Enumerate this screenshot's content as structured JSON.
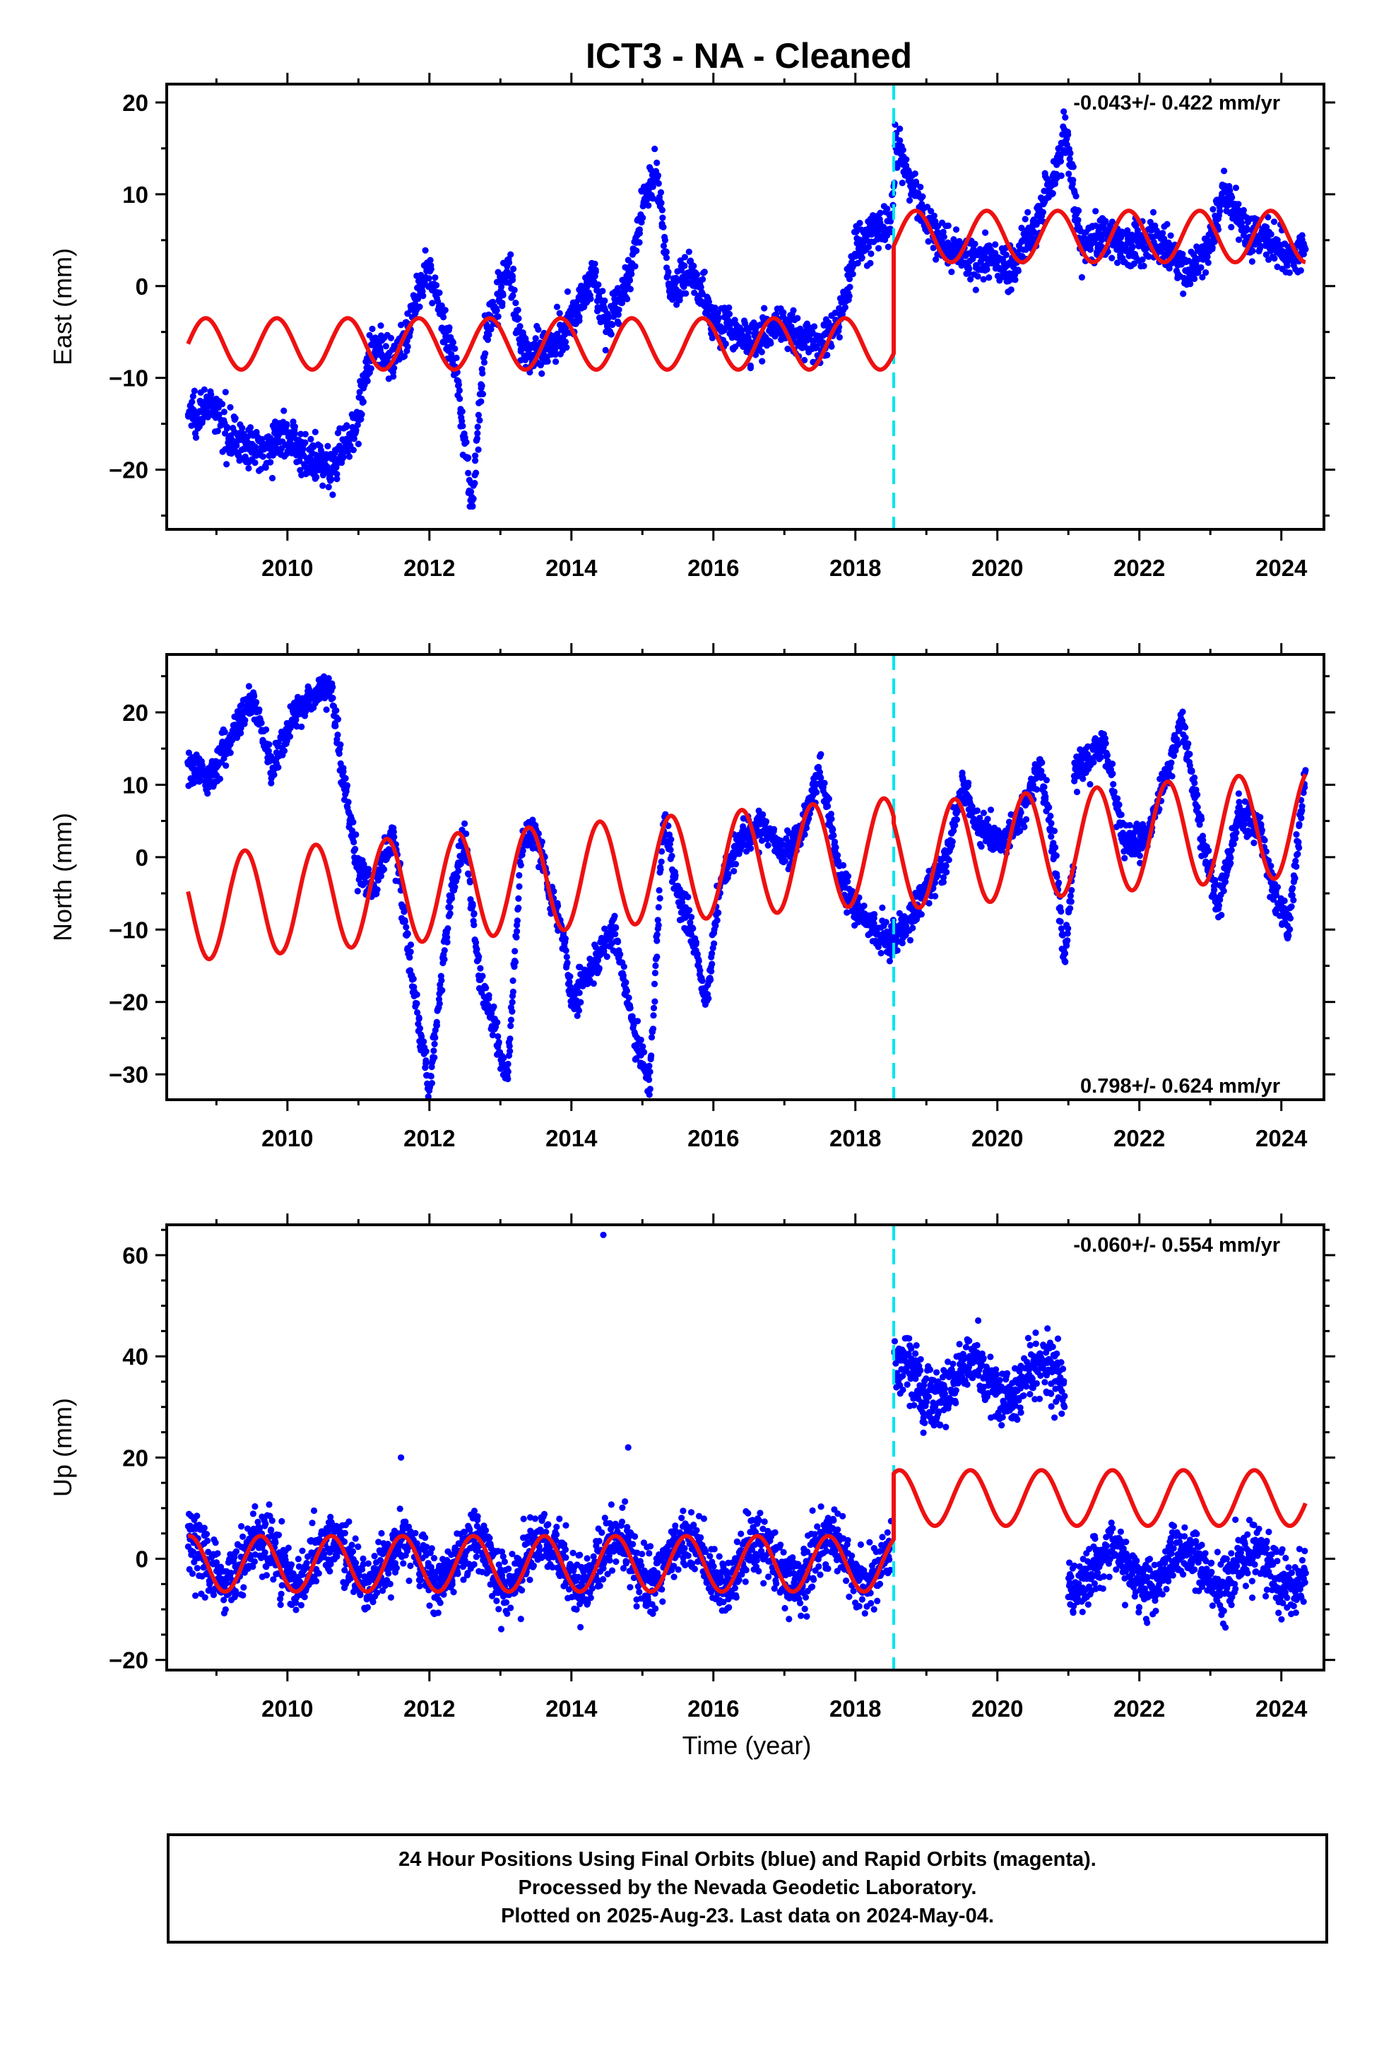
{
  "title": "ICT3  - NA - Cleaned",
  "colors": {
    "final_orbits": "#0000ff",
    "model": "#ee1111",
    "offset_line": "#00e5ee",
    "axes": "#000000"
  },
  "x_ticks": [
    2010,
    2012,
    2014,
    2016,
    2018,
    2020,
    2022,
    2024
  ],
  "x_axis_label": "Time (year)",
  "footer": {
    "line1": "24 Hour Positions Using Final Orbits (blue) and Rapid Orbits (magenta).",
    "line2": "Processed by the Nevada Geodetic Laboratory.",
    "line3": "Plotted on 2025-Aug-23. Last data on 2024-May-04."
  },
  "chart_data": [
    {
      "type": "scatter",
      "component": "east",
      "ylabel": "East (mm)",
      "rate_text": "-0.043+/- 0.422 mm/yr",
      "rate_position": "top-right",
      "xlim": [
        2008.3,
        2024.6
      ],
      "ylim": [
        -26.5,
        22
      ],
      "y_ticks": [
        -20,
        -10,
        0,
        10,
        20
      ],
      "offset_epoch": 2018.54,
      "grid": false,
      "series": [
        {
          "kind": "observations",
          "x": [
            2008.6,
            2008.9,
            2009.2,
            2009.5,
            2009.8,
            2010.0,
            2010.3,
            2010.6,
            2010.9,
            2011.0,
            2011.2,
            2011.5,
            2011.8,
            2012.0,
            2012.2,
            2012.4,
            2012.6,
            2012.8,
            2013.0,
            2013.1,
            2013.3,
            2013.6,
            2013.9,
            2014.1,
            2014.3,
            2014.5,
            2014.8,
            2015.0,
            2015.2,
            2015.4,
            2015.7,
            2016.0,
            2016.3,
            2016.6,
            2016.9,
            2017.2,
            2017.5,
            2017.8,
            2018.0,
            2018.3,
            2018.5,
            2018.6,
            2018.75,
            2019.0,
            2019.3,
            2019.6,
            2019.9,
            2020.2,
            2020.5,
            2020.8,
            2020.95,
            2021.2,
            2021.5,
            2021.8,
            2022.1,
            2022.4,
            2022.7,
            2023.0,
            2023.2,
            2023.5,
            2023.8,
            2024.1,
            2024.34
          ],
          "y": [
            -14,
            -13,
            -16,
            -18,
            -17,
            -16,
            -19,
            -20,
            -16,
            -14,
            -6,
            -9,
            -2,
            2,
            -4,
            -10,
            -24,
            -5,
            -1,
            3,
            -7,
            -7,
            -5,
            -2,
            1,
            -4,
            0,
            9,
            12,
            -1,
            2,
            -4,
            -5,
            -6,
            -4,
            -5,
            -7,
            -3,
            4,
            6,
            7,
            15,
            12,
            7,
            4,
            3,
            3,
            2,
            6,
            12,
            17,
            4,
            6,
            4,
            5,
            4,
            1,
            5,
            10,
            6,
            5,
            3,
            4
          ]
        },
        {
          "kind": "model",
          "segments": [
            {
              "x_start": 2008.6,
              "x_end": 2018.54,
              "mean": -6.3,
              "amplitude": 2.8,
              "phase_year": 2008.85
            },
            {
              "x_start": 2018.54,
              "x_end": 2024.34,
              "mean": 5.4,
              "amplitude": 2.8,
              "phase_year": 2008.85
            }
          ]
        }
      ]
    },
    {
      "type": "scatter",
      "component": "north",
      "ylabel": "North (mm)",
      "rate_text": "0.798+/- 0.624 mm/yr",
      "rate_position": "bottom-right",
      "xlim": [
        2008.3,
        2024.6
      ],
      "ylim": [
        -33.5,
        28
      ],
      "y_ticks": [
        -30,
        -20,
        -10,
        0,
        10,
        20
      ],
      "offset_epoch": 2018.54,
      "grid": false,
      "series": [
        {
          "kind": "observations",
          "x": [
            2008.6,
            2008.9,
            2009.2,
            2009.5,
            2009.8,
            2010.0,
            2010.3,
            2010.6,
            2010.8,
            2011.0,
            2011.2,
            2011.5,
            2011.8,
            2012.0,
            2012.3,
            2012.5,
            2012.7,
            2012.9,
            2013.1,
            2013.3,
            2013.5,
            2013.7,
            2013.9,
            2014.0,
            2014.3,
            2014.6,
            2014.9,
            2015.1,
            2015.3,
            2015.5,
            2015.7,
            2015.9,
            2016.1,
            2016.4,
            2016.7,
            2017.0,
            2017.3,
            2017.5,
            2017.8,
            2018.0,
            2018.3,
            2018.5,
            2018.7,
            2019.0,
            2019.3,
            2019.5,
            2019.8,
            2020.1,
            2020.4,
            2020.6,
            2020.8,
            2020.95,
            2021.2,
            2021.5,
            2021.8,
            2022.1,
            2022.4,
            2022.6,
            2022.9,
            2023.1,
            2023.4,
            2023.7,
            2023.9,
            2024.1,
            2024.34
          ],
          "y": [
            13,
            11,
            17,
            22,
            12,
            18,
            22,
            24,
            10,
            -2,
            -4,
            3,
            -20,
            -32,
            -5,
            3,
            -16,
            -23,
            -31,
            2,
            4,
            -5,
            -12,
            -20,
            -15,
            -10,
            -25,
            -31,
            5,
            -5,
            -10,
            -20,
            -3,
            2,
            5,
            0,
            5,
            12,
            -3,
            -7,
            -10,
            -12,
            -10,
            -4,
            0,
            10,
            3,
            2,
            7,
            13,
            1,
            -14,
            12,
            16,
            2,
            3,
            12,
            19,
            2,
            -7,
            6,
            4,
            -5,
            -10,
            12
          ]
        },
        {
          "kind": "model",
          "segments": [
            {
              "x_start": 2008.6,
              "x_end": 2018.54,
              "mean": -3.5,
              "amplitude": 7.3,
              "phase_year": 2008.4,
              "slope_per_year": 0.8,
              "ref_year": 2013.0
            },
            {
              "x_start": 2018.54,
              "x_end": 2024.34,
              "mean": 2.0,
              "amplitude": 7.3,
              "phase_year": 2008.4,
              "slope_per_year": 0.8,
              "ref_year": 2021.0
            }
          ]
        }
      ]
    },
    {
      "type": "scatter",
      "component": "up",
      "ylabel": "Up (mm)",
      "rate_text": "-0.060+/- 0.554 mm/yr",
      "rate_position": "top-right",
      "xlim": [
        2008.3,
        2024.6
      ],
      "ylim": [
        -22,
        66
      ],
      "y_ticks": [
        -20,
        0,
        20,
        40,
        60
      ],
      "offset_epoch": 2018.54,
      "grid": false,
      "series": [
        {
          "kind": "observations",
          "segments": [
            {
              "x_start": 2008.6,
              "x_end": 2018.5,
              "center": -0.5,
              "amplitude": 4.5,
              "spread": 5.5,
              "phase_year": 2008.62
            },
            {
              "x_start": 2018.55,
              "x_end": 2020.95,
              "center": 35,
              "amplitude": 3.5,
              "spread": 5.5,
              "phase_year": 2008.62
            },
            {
              "x_start": 2021.0,
              "x_end": 2024.34,
              "center": -2,
              "amplitude": 4.0,
              "spread": 5.0,
              "phase_year": 2008.62
            }
          ],
          "outliers": [
            {
              "x": 2014.45,
              "y": 64
            },
            {
              "x": 2014.8,
              "y": 22
            },
            {
              "x": 2011.6,
              "y": 20
            }
          ]
        },
        {
          "kind": "model",
          "segments": [
            {
              "x_start": 2008.6,
              "x_end": 2018.54,
              "mean": -1.0,
              "amplitude": 5.5,
              "phase_year": 2008.62
            },
            {
              "x_start": 2018.54,
              "x_end": 2024.34,
              "mean": 12.0,
              "amplitude": 5.5,
              "phase_year": 2008.62
            }
          ]
        }
      ]
    }
  ]
}
